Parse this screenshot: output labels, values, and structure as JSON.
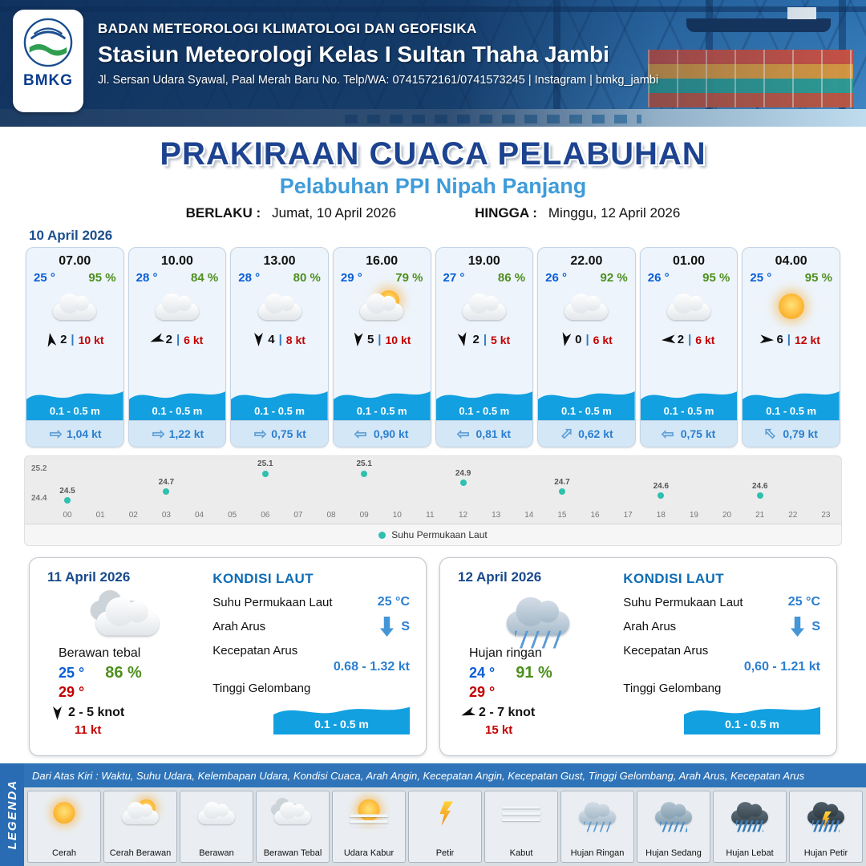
{
  "strings": {
    "sep": "|"
  },
  "header": {
    "agency": "BADAN METEOROLOGI KLIMATOLOGI DAN GEOFISIKA",
    "station": "Stasiun Meteorologi Kelas I Sultan Thaha Jambi",
    "address": "Jl. Sersan Udara Syawal, Paal Merah Baru No. Telp/WA: 0741572161/0741573245 | Instagram | bmkg_jambi",
    "logo_text": "BMKG"
  },
  "title": {
    "main": "PRAKIRAAN CUACA PELABUHAN",
    "subtitle": "Pelabuhan PPI Nipah Panjang",
    "valid_label": "BERLAKU :",
    "valid_value": "Jumat, 10 April 2026",
    "until_label": "HINGGA :",
    "until_value": "Minggu, 12 April 2026"
  },
  "forecast_date": "10 April 2026",
  "cards": [
    {
      "time": "07.00",
      "temp": "25 °",
      "rh": "95 %",
      "icon": "cloud",
      "wind_dir_deg": 350,
      "wind": "2",
      "gust": "10 kt",
      "wave": "0.1 - 0.5 m",
      "current_dir_deg": 90,
      "current": "1,04 kt"
    },
    {
      "time": "10.00",
      "temp": "28 °",
      "rh": "84 %",
      "icon": "cloud",
      "wind_dir_deg": 250,
      "wind": "2",
      "gust": "6 kt",
      "wave": "0.1 - 0.5 m",
      "current_dir_deg": 90,
      "current": "1,22 kt"
    },
    {
      "time": "13.00",
      "temp": "28 °",
      "rh": "80 %",
      "icon": "cloud",
      "wind_dir_deg": 180,
      "wind": "4",
      "gust": "8 kt",
      "wave": "0.1 - 0.5 m",
      "current_dir_deg": 90,
      "current": "0,75 kt"
    },
    {
      "time": "16.00",
      "temp": "29 °",
      "rh": "79 %",
      "icon": "sun-cloud",
      "wind_dir_deg": 185,
      "wind": "5",
      "gust": "10 kt",
      "wave": "0.1 - 0.5 m",
      "current_dir_deg": 270,
      "current": "0,90 kt"
    },
    {
      "time": "19.00",
      "temp": "27 °",
      "rh": "86 %",
      "icon": "cloud",
      "wind_dir_deg": 170,
      "wind": "2",
      "gust": "5 kt",
      "wave": "0.1 - 0.5 m",
      "current_dir_deg": 270,
      "current": "0,81 kt"
    },
    {
      "time": "22.00",
      "temp": "26 °",
      "rh": "92 %",
      "icon": "cloud",
      "wind_dir_deg": 190,
      "wind": "0",
      "gust": "6 kt",
      "wave": "0.1 - 0.5 m",
      "current_dir_deg": 45,
      "current": "0,62 kt"
    },
    {
      "time": "01.00",
      "temp": "26 °",
      "rh": "95 %",
      "icon": "cloud",
      "wind_dir_deg": 265,
      "wind": "2",
      "gust": "6 kt",
      "wave": "0.1 - 0.5 m",
      "current_dir_deg": 270,
      "current": "0,75 kt"
    },
    {
      "time": "04.00",
      "temp": "25 °",
      "rh": "95 %",
      "icon": "sun",
      "wind_dir_deg": 95,
      "wind": "6",
      "gust": "12 kt",
      "wave": "0.1 - 0.5 m",
      "current_dir_deg": 315,
      "current": "0,79 kt"
    }
  ],
  "chart_data": {
    "type": "scatter",
    "series_name": "Suhu Permukaan Laut",
    "x": [
      0,
      3,
      6,
      9,
      12,
      15,
      18,
      21
    ],
    "values": [
      24.5,
      24.7,
      25.1,
      25.1,
      24.9,
      24.7,
      24.6,
      24.6
    ],
    "ylim": [
      24.4,
      25.2
    ],
    "y_ticks": [
      "25.2",
      "24.4"
    ],
    "x_ticks": [
      "00",
      "01",
      "02",
      "03",
      "04",
      "05",
      "06",
      "07",
      "08",
      "09",
      "10",
      "11",
      "12",
      "13",
      "14",
      "15",
      "16",
      "17",
      "18",
      "19",
      "20",
      "21",
      "22",
      "23"
    ],
    "point_color": "#2fc0ae",
    "legend_position": "bottom",
    "grid": false
  },
  "days": [
    {
      "date": "11 April 2026",
      "icon": "clouds",
      "condition": "Berawan tebal",
      "temp_min": "25 °",
      "rh": "86 %",
      "temp_max": "29 °",
      "wind_dir_deg": 180,
      "wind_range": "2 - 5 knot",
      "gust": "11 kt",
      "sea": {
        "heading": "KONDISI LAUT",
        "sst_label": "Suhu Permukaan Laut",
        "sst_value": "25 °C",
        "current_dir_label": "Arah Arus",
        "current_dir_deg": 180,
        "current_dir": "S",
        "current_speed_label": "Kecepatan Arus",
        "current_speed": "0.68 - 1.32 kt",
        "wave_label": "Tinggi Gelombang",
        "wave": "0.1 - 0.5 m"
      }
    },
    {
      "date": "12 April 2026",
      "icon": "rain-light",
      "condition": "Hujan ringan",
      "temp_min": "24 °",
      "rh": "91 %",
      "temp_max": "29 °",
      "wind_dir_deg": 250,
      "wind_range": "2 - 7 knot",
      "gust": "15 kt",
      "sea": {
        "heading": "KONDISI LAUT",
        "sst_label": "Suhu Permukaan Laut",
        "sst_value": "25 °C",
        "current_dir_label": "Arah Arus",
        "current_dir_deg": 180,
        "current_dir": "S",
        "current_speed_label": "Kecepatan Arus",
        "current_speed": "0,60 - 1.21 kt",
        "wave_label": "Tinggi Gelombang",
        "wave": "0.1 - 0.5 m"
      }
    }
  ],
  "legend": {
    "sidebar": "LEGENDA",
    "note": "Dari Atas Kiri : Waktu, Suhu Udara, Kelembapan Udara, Kondisi Cuaca, Arah Angin, Kecepatan Angin, Kecepatan Gust, Tinggi Gelombang, Arah Arus, Kecepatan Arus",
    "items": [
      {
        "label": "Cerah",
        "icon": "sun"
      },
      {
        "label": "Cerah Berawan",
        "icon": "sun-cloud"
      },
      {
        "label": "Berawan",
        "icon": "cloud"
      },
      {
        "label": "Berawan Tebal",
        "icon": "clouds"
      },
      {
        "label": "Udara Kabur",
        "icon": "hazy-sun"
      },
      {
        "label": "Petir",
        "icon": "bolt"
      },
      {
        "label": "Kabut",
        "icon": "fog"
      },
      {
        "label": "Hujan Ringan",
        "icon": "rain-light"
      },
      {
        "label": "Hujan Sedang",
        "icon": "rain-med"
      },
      {
        "label": "Hujan Lebat",
        "icon": "rain-heavy"
      },
      {
        "label": "Hujan Petir",
        "icon": "storm"
      }
    ]
  }
}
